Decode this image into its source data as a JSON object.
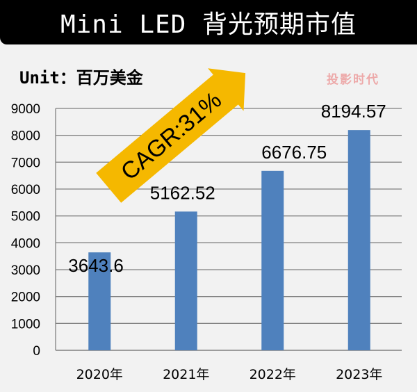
{
  "header": {
    "title": "Mini LED 背光预期市值"
  },
  "unit_label": "Unit：百万美金",
  "annotation": {
    "text": "CAGR:31%",
    "color": "#f5b800"
  },
  "watermark": "投影时代",
  "chart_data": {
    "type": "bar",
    "title": "Mini LED 背光预期市值",
    "ylabel": "Unit：百万美金",
    "categories": [
      "2020年",
      "2021年",
      "2022年",
      "2023年"
    ],
    "values": [
      3643.6,
      5162.52,
      6676.75,
      8194.57
    ],
    "data_labels": [
      "3643.6",
      "5162.52",
      "6676.75",
      "8194.57"
    ],
    "ylim": [
      0,
      9000
    ],
    "yticks": [
      0,
      1000,
      2000,
      3000,
      4000,
      5000,
      6000,
      7000,
      8000,
      9000
    ],
    "grid": true,
    "bar_color": "#4f81bd"
  }
}
